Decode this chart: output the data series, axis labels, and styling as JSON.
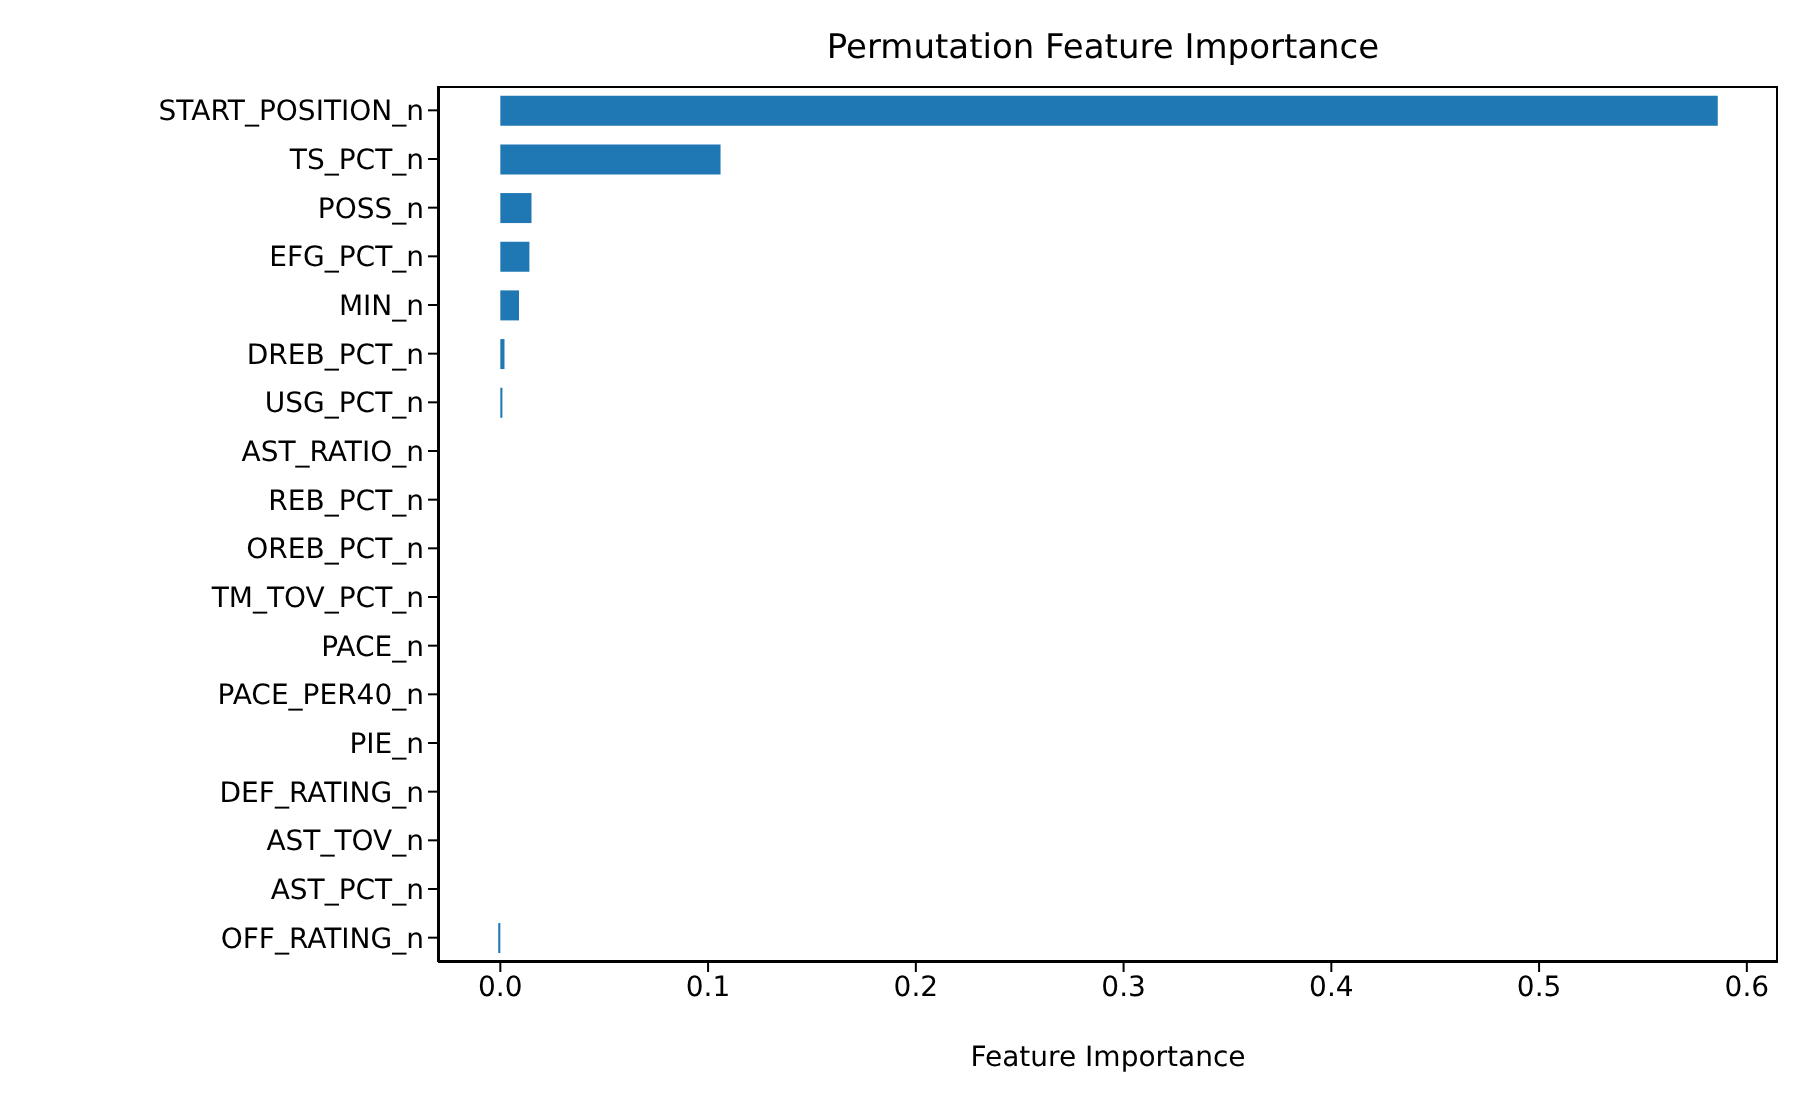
{
  "chart_data": {
    "type": "bar",
    "orientation": "horizontal",
    "title": "Permutation Feature Importance",
    "xlabel": "Feature Importance",
    "categories": [
      "START_POSITION_n",
      "TS_PCT_n",
      "POSS_n",
      "EFG_PCT_n",
      "MIN_n",
      "DREB_PCT_n",
      "USG_PCT_n",
      "AST_RATIO_n",
      "REB_PCT_n",
      "OREB_PCT_n",
      "TM_TOV_PCT_n",
      "PACE_n",
      "PACE_PER40_n",
      "PIE_n",
      "DEF_RATING_n",
      "AST_TOV_n",
      "AST_PCT_n",
      "OFF_RATING_n"
    ],
    "values": [
      0.586,
      0.106,
      0.015,
      0.014,
      0.009,
      0.002,
      0.001,
      0,
      0,
      0,
      0,
      0,
      0,
      0,
      0,
      0,
      0,
      -0.001
    ],
    "color": "#1f77b4",
    "xlim": [
      -0.03,
      0.615
    ],
    "xticks": [
      {
        "value": 0,
        "label": "0.0"
      },
      0.1,
      0.2,
      0.3,
      0.4,
      0.5,
      0.6
    ],
    "grid": false,
    "legend": false
  }
}
